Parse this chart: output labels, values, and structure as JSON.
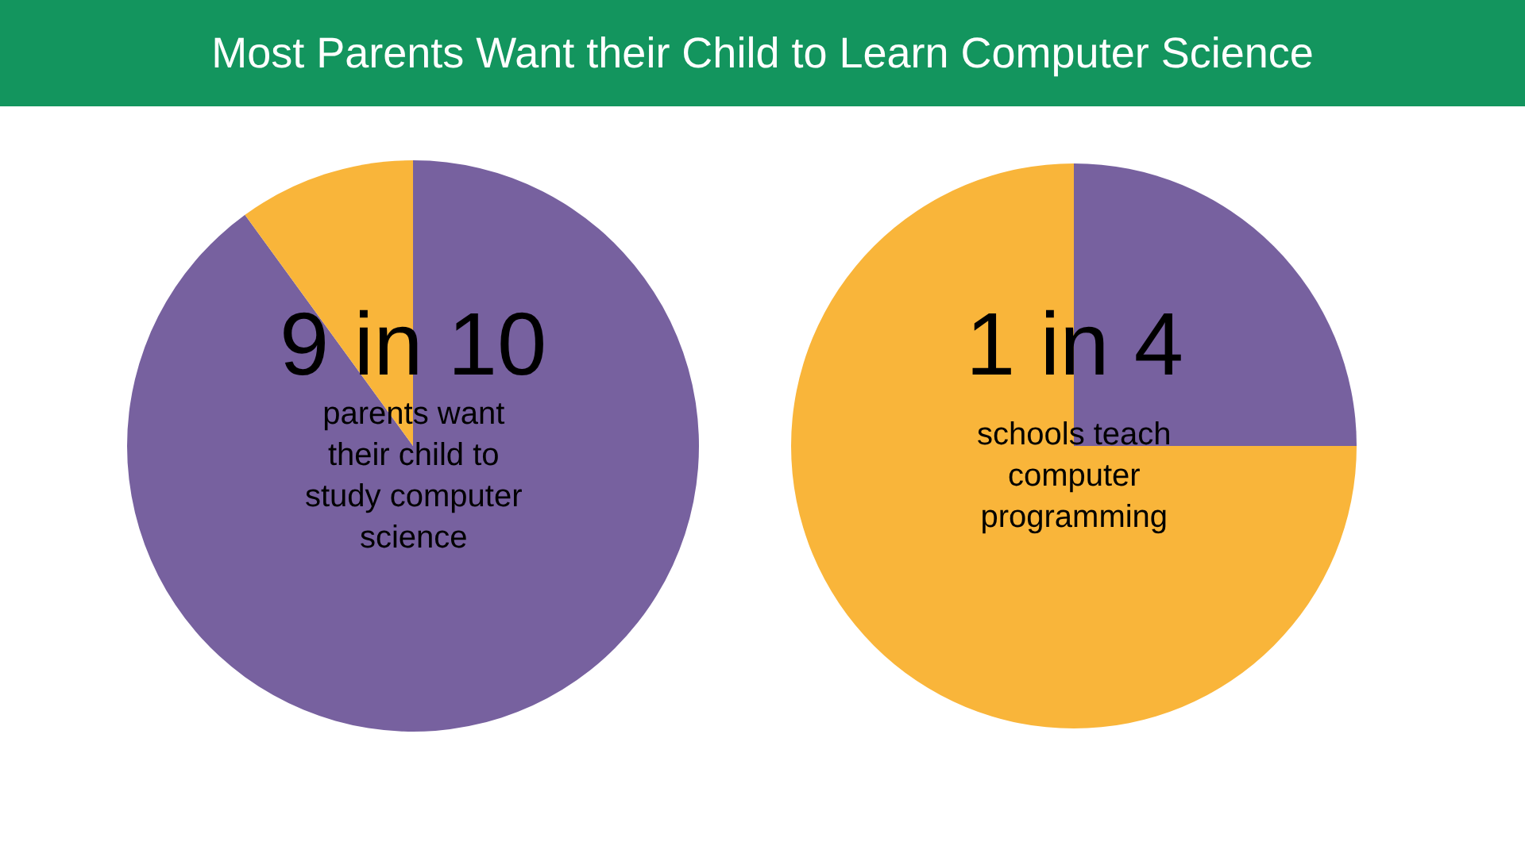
{
  "chart_data": [
    {
      "type": "pie",
      "title": "Most Parents Want their Child to Learn Computer Science",
      "categories": [
        null,
        null
      ],
      "values": [
        90,
        10
      ],
      "colors": [
        "#77619f",
        "#f9b53a"
      ],
      "legend": false,
      "annotations": [
        "9 in 10",
        "parents want\ntheir child to\nstudy computer\nscience"
      ]
    },
    {
      "type": "pie",
      "categories": [
        null,
        null
      ],
      "values": [
        25,
        75
      ],
      "colors": [
        "#77619f",
        "#f9b53a"
      ],
      "legend": false,
      "annotations": [
        "1 in 4",
        "schools teach\ncomputer\nprogramming"
      ]
    }
  ]
}
